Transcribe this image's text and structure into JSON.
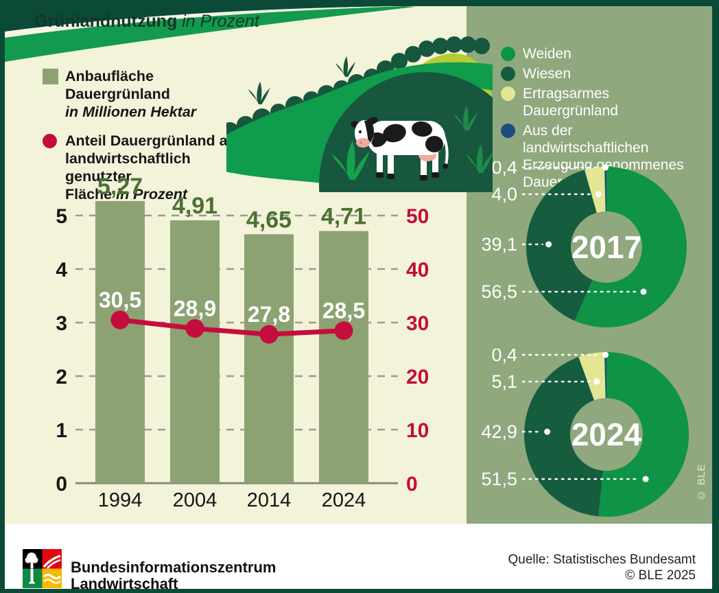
{
  "left_legend": {
    "bar_label": "Anbaufläche Dauergrünland",
    "bar_sublabel": "in Millionen Hektar",
    "line_label_1": "Anteil Dauergrünland an",
    "line_label_2": "landwirtschaftlich genutzter",
    "line_label_3": "Fläche ",
    "line_label_3b": "in Prozent"
  },
  "panel": {
    "title": "Grünlandnutzung ",
    "title_suffix": "in Prozent",
    "legend": [
      {
        "label": "Weiden",
        "color": "#0E9347"
      },
      {
        "label": "Wiesen",
        "color": "#165C3F"
      },
      {
        "label": "Ertragsarmes Dauergrünland",
        "color": "#E4E694"
      },
      {
        "label": "Aus der landwirtschaftlichen Erzeugung genommenes Dauergrünland",
        "color": "#1C4E7C"
      }
    ],
    "copyright": "© BLE"
  },
  "footer": {
    "org_line1": "Bundesinformationszentrum",
    "org_line2": "Landwirtschaft",
    "source": "Quelle: Statistisches Bundesamt",
    "copyright": "© BLE 2025"
  },
  "chart_data": [
    {
      "id": "grassland-bars",
      "type": "bar",
      "categories": [
        "1994",
        "2004",
        "2014",
        "2024"
      ],
      "series": [
        {
          "name": "Anbaufläche Dauergrünland in Millionen Hektar",
          "type": "bar",
          "values": [
            5.27,
            4.91,
            4.65,
            4.71
          ],
          "labels": [
            "5,27",
            "4,91",
            "4,65",
            "4,71"
          ],
          "color": "#8CA272",
          "axis": "left"
        },
        {
          "name": "Anteil Dauergrünland an landwirtschaftlich genutzter Fläche in Prozent",
          "type": "line",
          "values": [
            30.5,
            28.9,
            27.8,
            28.5
          ],
          "labels": [
            "30,5",
            "28,9",
            "27,8",
            "28,5"
          ],
          "color": "#C40D3C",
          "axis": "right"
        }
      ],
      "left_axis": {
        "ticks": [
          0,
          1,
          2,
          3,
          4,
          5
        ],
        "range": [
          0,
          5.5
        ]
      },
      "right_axis": {
        "ticks": [
          0,
          10,
          20,
          30,
          40,
          50
        ],
        "range": [
          0,
          55
        ]
      },
      "grid": "dashed horizontal"
    },
    {
      "id": "donut-2017",
      "type": "pie",
      "title": "2017",
      "slices": [
        {
          "label": "Weiden",
          "value": 56.5,
          "display": "56,5",
          "color": "#0E9347"
        },
        {
          "label": "Wiesen",
          "value": 39.1,
          "display": "39,1",
          "color": "#165C3F"
        },
        {
          "label": "Ertragsarmes Dauergrünland",
          "value": 4.0,
          "display": "4,0",
          "color": "#E4E694"
        },
        {
          "label": "Aus der landwirtschaftlichen Erzeugung genommenes Dauergrünland",
          "value": 0.4,
          "display": "0,4",
          "color": "#1C4E7C"
        }
      ]
    },
    {
      "id": "donut-2024",
      "type": "pie",
      "title": "2024",
      "slices": [
        {
          "label": "Weiden",
          "value": 51.5,
          "display": "51,5",
          "color": "#0E9347"
        },
        {
          "label": "Wiesen",
          "value": 42.9,
          "display": "42,9",
          "color": "#165C3F"
        },
        {
          "label": "Ertragsarmes Dauergrünland",
          "value": 5.1,
          "display": "5,1",
          "color": "#E4E694"
        },
        {
          "label": "Aus der landwirtschaftlichen Erzeugung genommenes Dauergrünland",
          "value": 0.4,
          "display": "0,4",
          "color": "#1C4E7C"
        }
      ]
    }
  ]
}
